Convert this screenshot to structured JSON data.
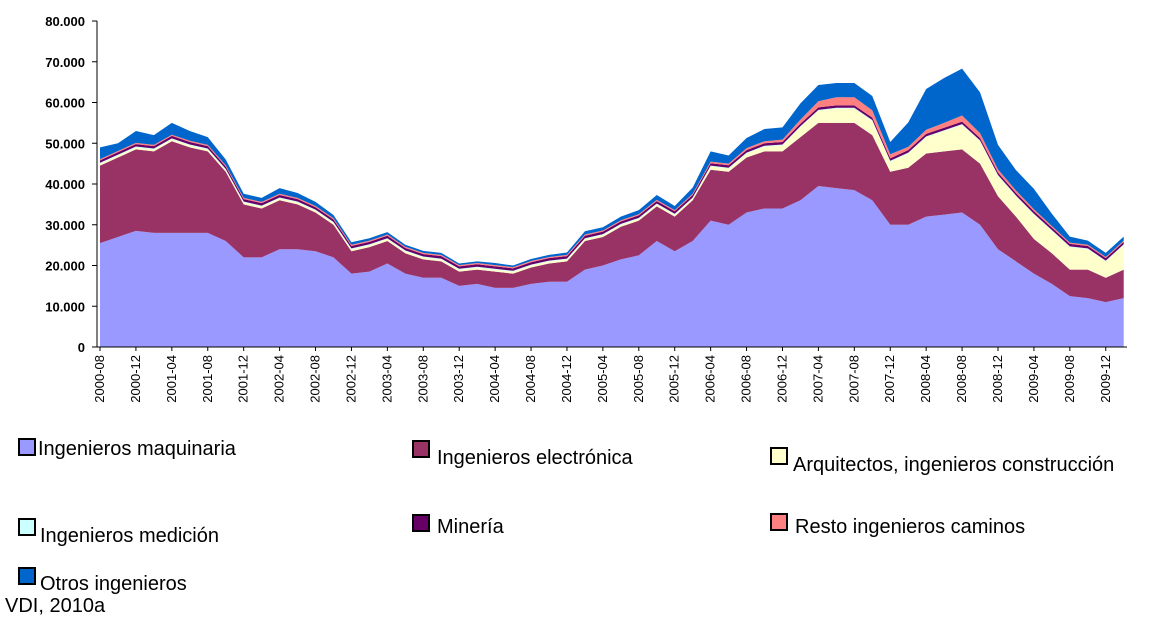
{
  "chart_data": {
    "type": "stacked_area",
    "categories": [
      "2000-08",
      null,
      "2000-12",
      null,
      "2001-04",
      null,
      "2001-08",
      null,
      "2001-12",
      null,
      "2002-04",
      null,
      "2002-08",
      null,
      "2002-12",
      null,
      "2003-04",
      null,
      "2003-08",
      null,
      "2003-12",
      null,
      "2004-04",
      null,
      "2004-08",
      null,
      "2004-12",
      null,
      "2005-04",
      null,
      "2005-08",
      null,
      "2005-12",
      null,
      "2006-04",
      null,
      "2006-08",
      null,
      "2006-12",
      null,
      "2007-04",
      null,
      "2007-08",
      null,
      "2007-12",
      null,
      "2008-04",
      null,
      "2008-08",
      null,
      "2008-12",
      null,
      "2009-04",
      null,
      "2009-08",
      null,
      "2009-12",
      null
    ],
    "ylim": [
      0,
      80000
    ],
    "yticks": [
      0,
      {
        "value": 10000,
        "label": "10.000"
      },
      {
        "value": 20000,
        "label": "20.000"
      },
      {
        "value": 30000,
        "label": "30.000"
      },
      {
        "value": 40000,
        "label": "40.000"
      },
      {
        "value": 50000,
        "label": "50.000"
      },
      {
        "value": 60000,
        "label": "60.000"
      },
      {
        "value": 70000,
        "label": "70.000"
      },
      {
        "value": 80000,
        "label": "80.000"
      }
    ],
    "grid": false,
    "series": [
      {
        "name": "Ingenieros maquinaria",
        "color": "#9999ff",
        "values": [
          25500,
          27000,
          28500,
          28000,
          28000,
          28000,
          28000,
          26000,
          22000,
          22000,
          24000,
          24000,
          23500,
          22000,
          18000,
          18500,
          20500,
          18000,
          17000,
          17000,
          15000,
          15500,
          14500,
          14500,
          15500,
          16000,
          16000,
          19000,
          20000,
          21500,
          22500,
          26000,
          23500,
          26000,
          31000,
          30000,
          33000,
          34000,
          34000,
          36000,
          39500,
          39000,
          38500,
          36000,
          30000,
          30000,
          32000,
          32500,
          33000,
          30000,
          24000,
          21000,
          18000,
          15500,
          12500,
          12000,
          11000,
          12000
        ]
      },
      {
        "name": "Ingenieros electrónica",
        "color": "#993366",
        "values": [
          19000,
          19500,
          20000,
          20000,
          22500,
          21000,
          20000,
          17000,
          13000,
          12000,
          12000,
          11000,
          9500,
          8000,
          5500,
          6000,
          5500,
          5000,
          4500,
          4000,
          3500,
          3500,
          4000,
          3500,
          4000,
          4500,
          5000,
          7000,
          7000,
          8000,
          8500,
          8500,
          8500,
          10000,
          12500,
          13000,
          13500,
          14000,
          14000,
          15500,
          15500,
          16000,
          16500,
          16000,
          13000,
          14000,
          15500,
          15500,
          15500,
          15000,
          13000,
          11000,
          8500,
          7500,
          6500,
          7000,
          6000,
          7000
        ]
      },
      {
        "name": "Arquitectos, ingenieros construcción",
        "color": "#ffffcc",
        "values": [
          500,
          500,
          500,
          500,
          500,
          500,
          500,
          500,
          500,
          500,
          500,
          500,
          500,
          500,
          500,
          500,
          500,
          500,
          500,
          500,
          500,
          500,
          500,
          500,
          500,
          500,
          500,
          500,
          500,
          500,
          500,
          500,
          500,
          500,
          800,
          800,
          1000,
          1200,
          1500,
          2500,
          3000,
          3500,
          3500,
          3500,
          2500,
          3500,
          4000,
          5000,
          6000,
          5500,
          5000,
          5000,
          6000,
          5500,
          5500,
          5000,
          4000,
          6000
        ]
      },
      {
        "name": "Ingenieros medición",
        "color": "#ccffff",
        "values": [
          200,
          200,
          200,
          200,
          200,
          200,
          200,
          200,
          200,
          200,
          200,
          200,
          200,
          200,
          200,
          200,
          200,
          200,
          200,
          200,
          200,
          200,
          200,
          200,
          200,
          200,
          200,
          200,
          200,
          200,
          200,
          200,
          200,
          200,
          200,
          200,
          200,
          200,
          200,
          200,
          200,
          200,
          200,
          200,
          200,
          200,
          200,
          200,
          200,
          200,
          200,
          200,
          200,
          200,
          200,
          200,
          200,
          200
        ]
      },
      {
        "name": "Minería",
        "color": "#660066",
        "values": [
          600,
          600,
          600,
          600,
          600,
          600,
          600,
          600,
          600,
          600,
          600,
          600,
          600,
          600,
          600,
          600,
          600,
          600,
          600,
          600,
          600,
          600,
          600,
          600,
          600,
          600,
          600,
          600,
          600,
          600,
          600,
          600,
          600,
          600,
          600,
          600,
          600,
          600,
          600,
          600,
          600,
          600,
          600,
          600,
          600,
          600,
          600,
          600,
          600,
          600,
          600,
          600,
          600,
          600,
          600,
          600,
          600,
          600
        ]
      },
      {
        "name": "Resto ingenieros caminos",
        "color": "#ff8080",
        "values": [
          300,
          300,
          300,
          300,
          300,
          300,
          300,
          300,
          300,
          300,
          300,
          300,
          300,
          300,
          300,
          300,
          300,
          300,
          300,
          300,
          300,
          300,
          300,
          300,
          300,
          300,
          300,
          300,
          300,
          300,
          300,
          300,
          300,
          300,
          400,
          400,
          500,
          500,
          600,
          1000,
          1500,
          2000,
          2000,
          1800,
          1000,
          800,
          1000,
          1200,
          1500,
          1200,
          800,
          600,
          500,
          400,
          300,
          300,
          300,
          300
        ]
      },
      {
        "name": "Otros ingenieros",
        "color": "#0066cc",
        "values": [
          2900,
          1900,
          2900,
          2400,
          2900,
          2400,
          1900,
          1400,
          1000,
          1000,
          1400,
          1200,
          1000,
          800,
          600,
          600,
          600,
          500,
          500,
          500,
          400,
          400,
          500,
          400,
          500,
          500,
          600,
          800,
          800,
          900,
          1000,
          1200,
          1000,
          1500,
          2500,
          2000,
          2500,
          3000,
          3000,
          4000,
          4000,
          3500,
          3500,
          3500,
          3000,
          6000,
          10000,
          11000,
          11500,
          10000,
          6000,
          5000,
          5000,
          3000,
          1500,
          1000,
          1000,
          1000
        ]
      }
    ]
  },
  "source": "VDI, 2010a"
}
